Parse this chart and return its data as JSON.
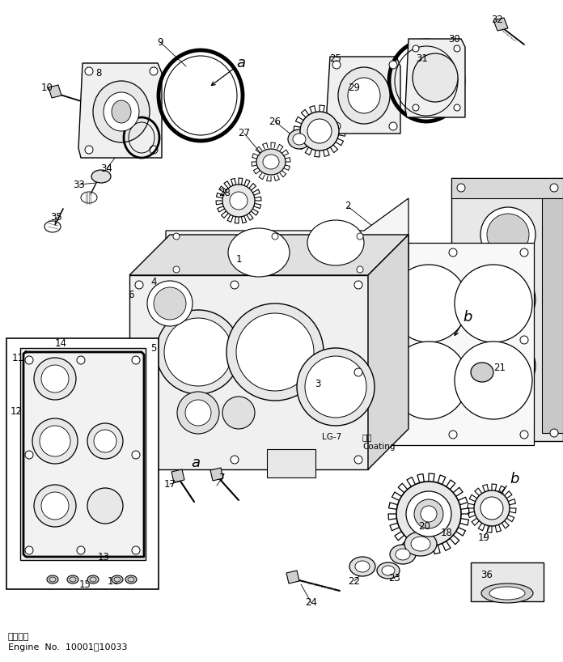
{
  "background_color": "#ffffff",
  "line_color": "#000000",
  "figure_width": 6.96,
  "figure_height": 8.18,
  "dpi": 100,
  "footer_line1": "適用号機",
  "footer_line2": "Engine  No.  10001～10033",
  "coating_label": "塗布",
  "coating_label2": "Coating",
  "grease_label": "LG-7"
}
